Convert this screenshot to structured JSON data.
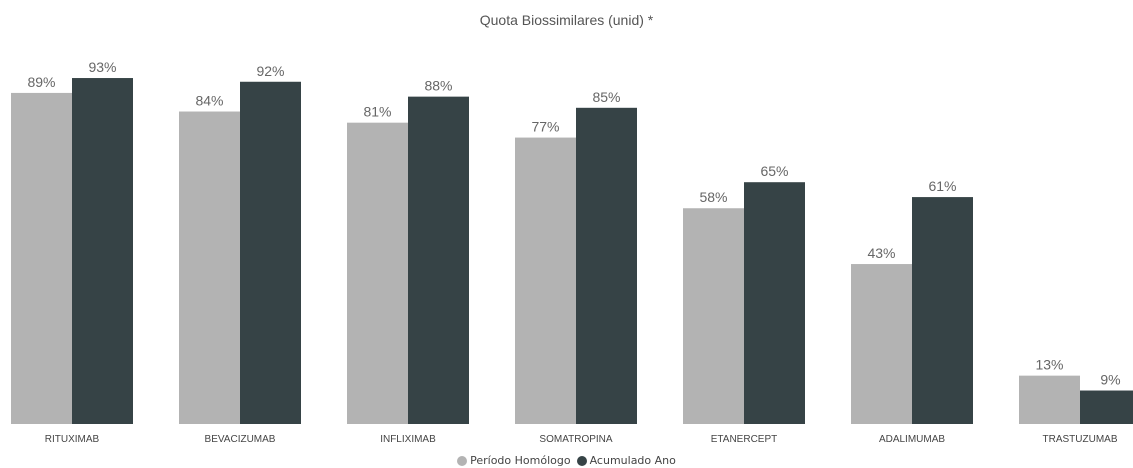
{
  "chart_data": {
    "type": "bar",
    "title": "Quota Biossimilares (unid) *",
    "categories": [
      "RITUXIMAB",
      "BEVACIZUMAB",
      "INFLIXIMAB",
      "SOMATROPINA",
      "ETANERCEPT",
      "ADALIMUMAB",
      "TRASTUZUMAB"
    ],
    "series": [
      {
        "name": "Período Homólogo",
        "values": [
          89,
          84,
          81,
          77,
          58,
          43,
          13
        ],
        "labels": [
          "89%",
          "84%",
          "81%",
          "77%",
          "58%",
          "43%",
          "13%"
        ]
      },
      {
        "name": "Acumulado Ano",
        "values": [
          93,
          92,
          88,
          85,
          65,
          61,
          9
        ],
        "labels": [
          "93%",
          "92%",
          "88%",
          "85%",
          "65%",
          "61%",
          "9%"
        ]
      }
    ],
    "ylim": [
      0,
      100
    ],
    "grid": false,
    "legend_position": "bottom-center"
  },
  "colors": {
    "series_1": "#b3b3b3",
    "series_2": "#364346",
    "label_text": "#666666",
    "axis_text": "#444444"
  }
}
